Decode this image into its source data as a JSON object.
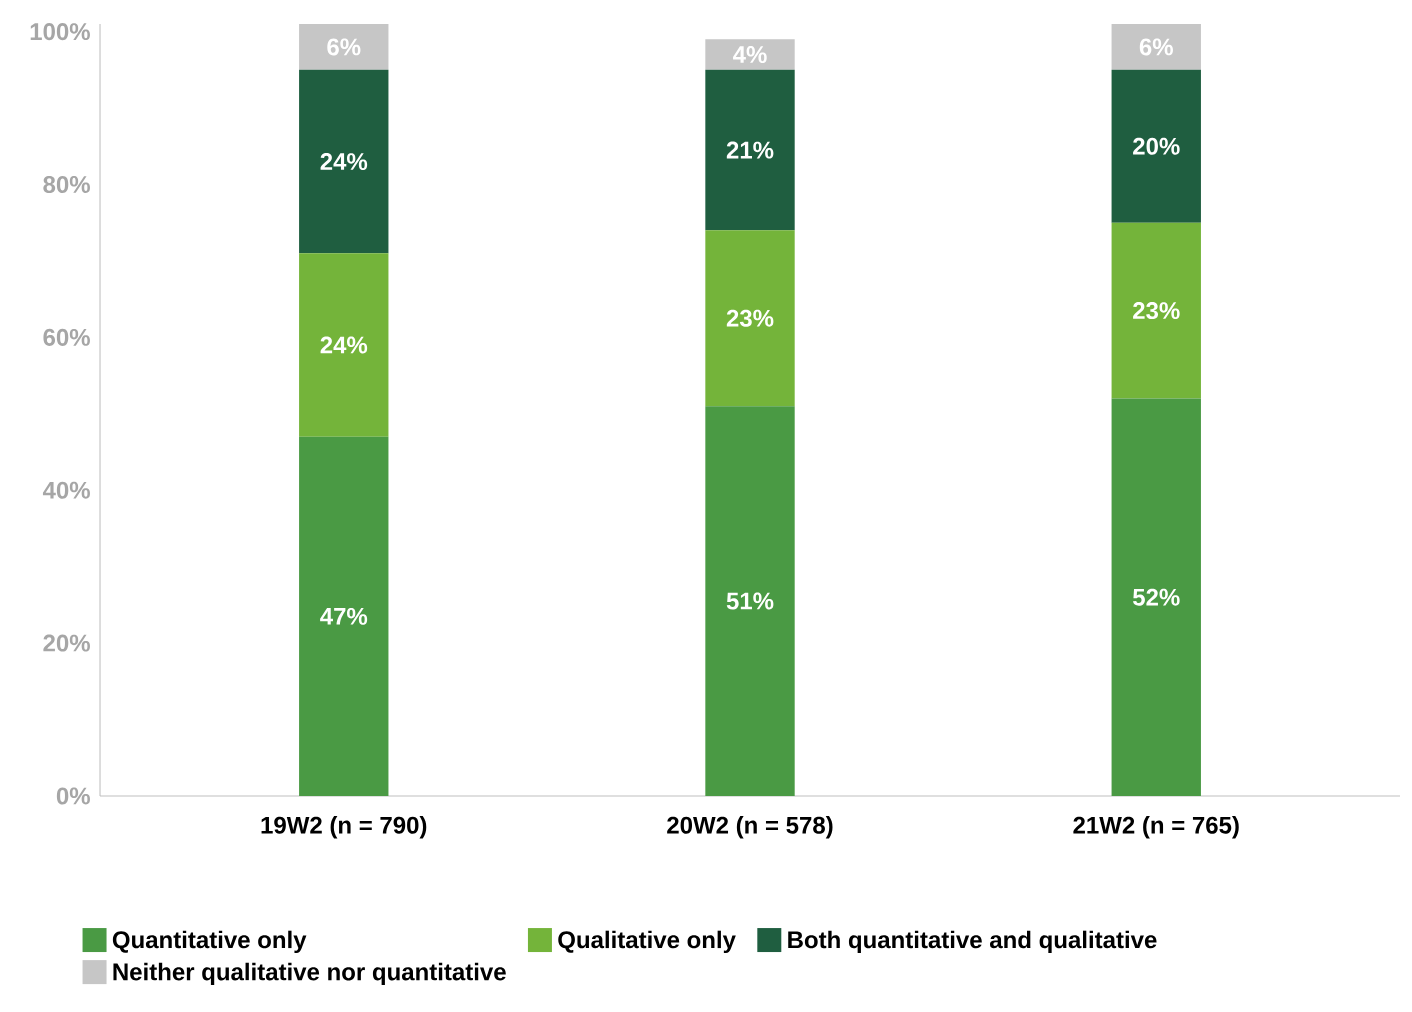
{
  "chart_data": {
    "type": "bar",
    "stacked": true,
    "legend": "bottom left",
    "grid": false,
    "categories": [
      "19W2 (n = 790)",
      "20W2 (n = 578)",
      "21W2 (n = 765)"
    ],
    "series": [
      {
        "name": "Quantitative only",
        "color": "#4a9a44",
        "values": [
          47,
          51,
          52
        ],
        "value_labels": [
          "47%",
          "51%",
          "52%"
        ]
      },
      {
        "name": "Qualitative only",
        "color": "#74b43a",
        "values": [
          24,
          23,
          23
        ],
        "value_labels": [
          "24%",
          "23%",
          "23%"
        ]
      },
      {
        "name": "Both quantitative and qualitative",
        "color": "#1f5e40",
        "values": [
          24,
          21,
          20
        ],
        "value_labels": [
          "24%",
          "21%",
          "20%"
        ]
      },
      {
        "name": "Neither qualitative nor quantitative",
        "color": "#c6c6c6",
        "values": [
          6,
          4,
          6
        ],
        "value_labels": [
          "6%",
          "4%",
          "6%"
        ]
      }
    ],
    "ylim": [
      0,
      101
    ],
    "yticks": [
      {
        "value": 0,
        "label": "0%"
      },
      {
        "value": 20,
        "label": "20%"
      },
      {
        "value": 40,
        "label": "40%"
      },
      {
        "value": 60,
        "label": "60%"
      },
      {
        "value": 80,
        "label": "80%"
      },
      {
        "value": 100,
        "label": "100%"
      }
    ]
  }
}
